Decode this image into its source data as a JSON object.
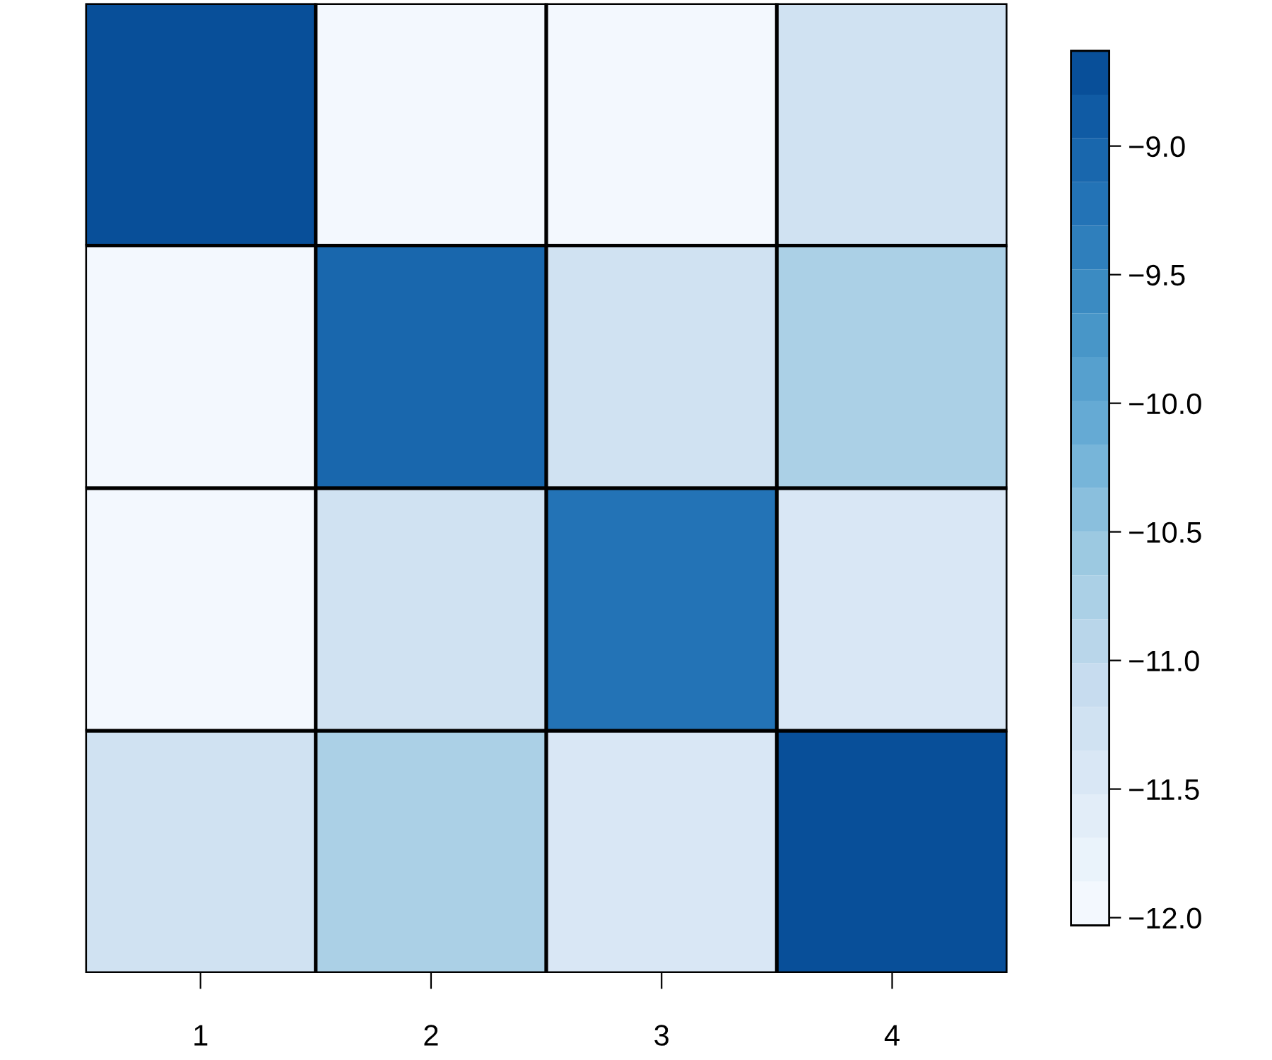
{
  "chart_data": {
    "type": "heatmap",
    "categories": [
      "1",
      "2",
      "3",
      "4"
    ],
    "y_categories": [
      null,
      null,
      null,
      null
    ],
    "cells": [
      [
        -8.8,
        -12.0,
        -12.0,
        -11.3
      ],
      [
        -12.0,
        -9.0,
        -11.3,
        -10.7
      ],
      [
        -12.0,
        -11.3,
        -9.2,
        -11.5
      ],
      [
        -11.3,
        -10.7,
        -11.5,
        -8.7
      ]
    ],
    "clim": [
      -12.03,
      -8.63
    ],
    "cticks": [
      {
        "value": -9.0,
        "label": "−9.0"
      },
      {
        "value": -9.5,
        "label": "−9.5"
      },
      {
        "value": -10.0,
        "label": "−10.0"
      },
      {
        "value": -10.5,
        "label": "−10.5"
      },
      {
        "value": -11.0,
        "label": "−11.0"
      },
      {
        "value": -11.5,
        "label": "−11.5"
      },
      {
        "value": -12.0,
        "label": "−12.0"
      }
    ],
    "tick_labels": "x",
    "grid": false
  }
}
